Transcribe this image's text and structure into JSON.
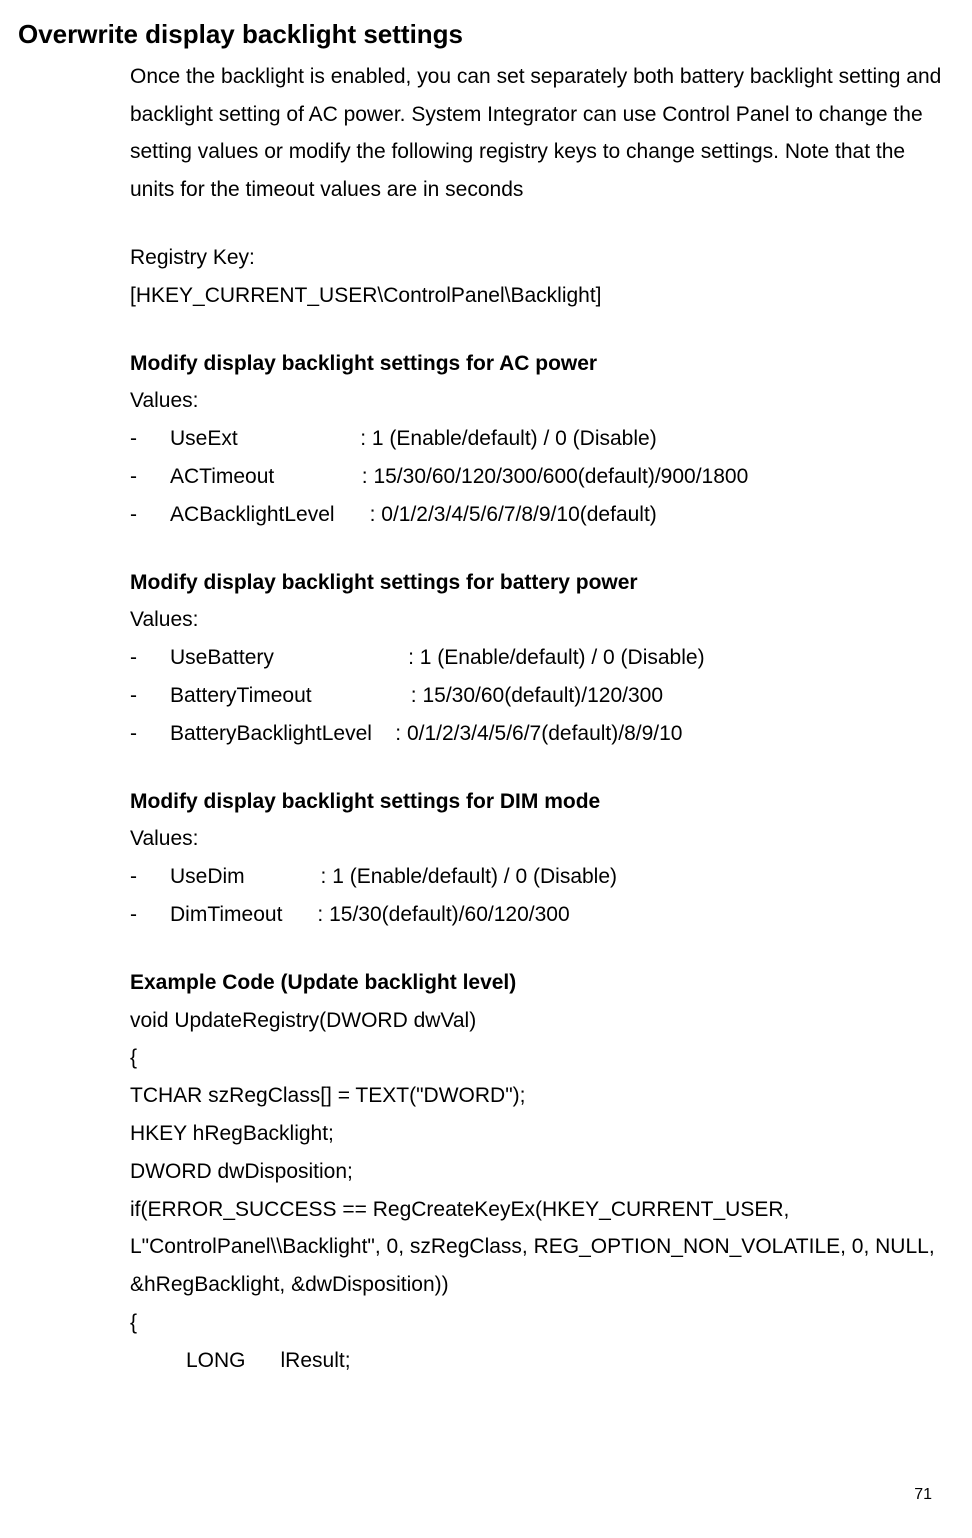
{
  "heading": "Overwrite display backlight settings",
  "intro": "Once the backlight is enabled, you can set separately both battery backlight setting and backlight setting of AC power. System Integrator can use Control Panel to change the setting values or modify the following registry keys to change settings. Note that the units for the timeout values are in seconds",
  "registry": {
    "label": "Registry Key:",
    "path": "[HKEY_CURRENT_USER\\ControlPanel\\Backlight]"
  },
  "sections": {
    "ac": {
      "title": "Modify display backlight settings for AC power",
      "values_label": "Values:",
      "items": [
        {
          "marker": "-",
          "key": "UseExt                     ",
          "val": ": 1 (Enable/default) / 0 (Disable)"
        },
        {
          "marker": "-",
          "key": "ACTimeout               ",
          "val": ": 15/30/60/120/300/600(default)/900/1800"
        },
        {
          "marker": "-",
          "key": "ACBacklightLevel      ",
          "val": ": 0/1/2/3/4/5/6/7/8/9/10(default)"
        }
      ]
    },
    "battery": {
      "title": "Modify display backlight settings for battery power",
      "values_label": "Values:",
      "items": [
        {
          "marker": "-",
          "key": "UseBattery                       ",
          "val": ": 1 (Enable/default) / 0 (Disable)"
        },
        {
          "marker": "-",
          "key": "BatteryTimeout                 ",
          "val": ": 15/30/60(default)/120/300"
        },
        {
          "marker": "-",
          "key": "BatteryBacklightLevel    ",
          "val": ": 0/1/2/3/4/5/6/7(default)/8/9/10"
        }
      ]
    },
    "dim": {
      "title": "Modify display backlight settings for DIM mode",
      "values_label": "Values:",
      "items": [
        {
          "marker": "-",
          "key": "UseDim             ",
          "val": ": 1 (Enable/default) / 0 (Disable)"
        },
        {
          "marker": "-",
          "key": "DimTimeout      ",
          "val": ": 15/30(default)/60/120/300"
        }
      ]
    }
  },
  "example": {
    "title": "Example Code (Update backlight level)",
    "lines": [
      "void UpdateRegistry(DWORD dwVal)",
      "{",
      "TCHAR szRegClass[] = TEXT(\"DWORD\");",
      "HKEY hRegBacklight;",
      "DWORD dwDisposition;",
      "if(ERROR_SUCCESS == RegCreateKeyEx(HKEY_CURRENT_USER, L\"ControlPanel\\\\Backlight\", 0, szRegClass, REG_OPTION_NON_VOLATILE, 0, NULL, &hRegBacklight, &dwDisposition))",
      "{"
    ],
    "indented_line": "LONG      lResult;"
  },
  "page_number": "71"
}
